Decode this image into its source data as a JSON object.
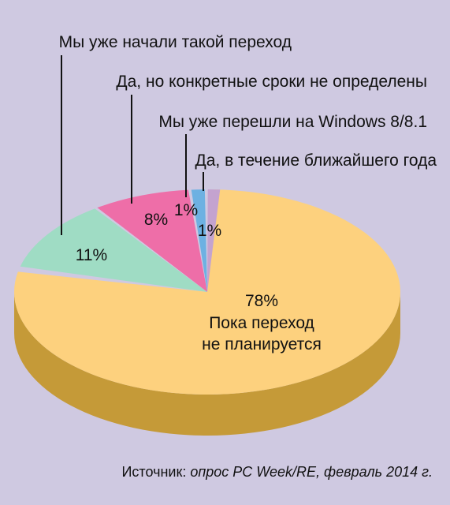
{
  "chart_data": {
    "type": "pie",
    "title": "",
    "slices": [
      {
        "label": "Пока переход не планируется",
        "label_lines": [
          "Пока переход",
          "не планируется"
        ],
        "value": 78,
        "value_label": "78%",
        "color": "#fdd17e",
        "side_color": "#c59a38"
      },
      {
        "label": "Мы уже начали такой переход",
        "value": 11,
        "value_label": "11%",
        "color": "#9fdcc4",
        "side_color": "#6aa88f"
      },
      {
        "label": "Да, но конкретные сроки не определены",
        "value": 8,
        "value_label": "8%",
        "color": "#ee6ea8",
        "side_color": "#b04677"
      },
      {
        "label": "Мы уже перешли на Windows 8/8.1",
        "value": 1,
        "value_label": "1%",
        "color": "#6db1e2",
        "side_color": "#3f7faf"
      },
      {
        "label": "Да, в течение ближайшего года",
        "value": 1,
        "value_label": "1%",
        "color": "#c4a3cf",
        "side_color": "#8e6f99"
      }
    ]
  },
  "source": {
    "prefix": "Источник: ",
    "text": "опрос PC Week/RE, февраль 2014 г."
  }
}
